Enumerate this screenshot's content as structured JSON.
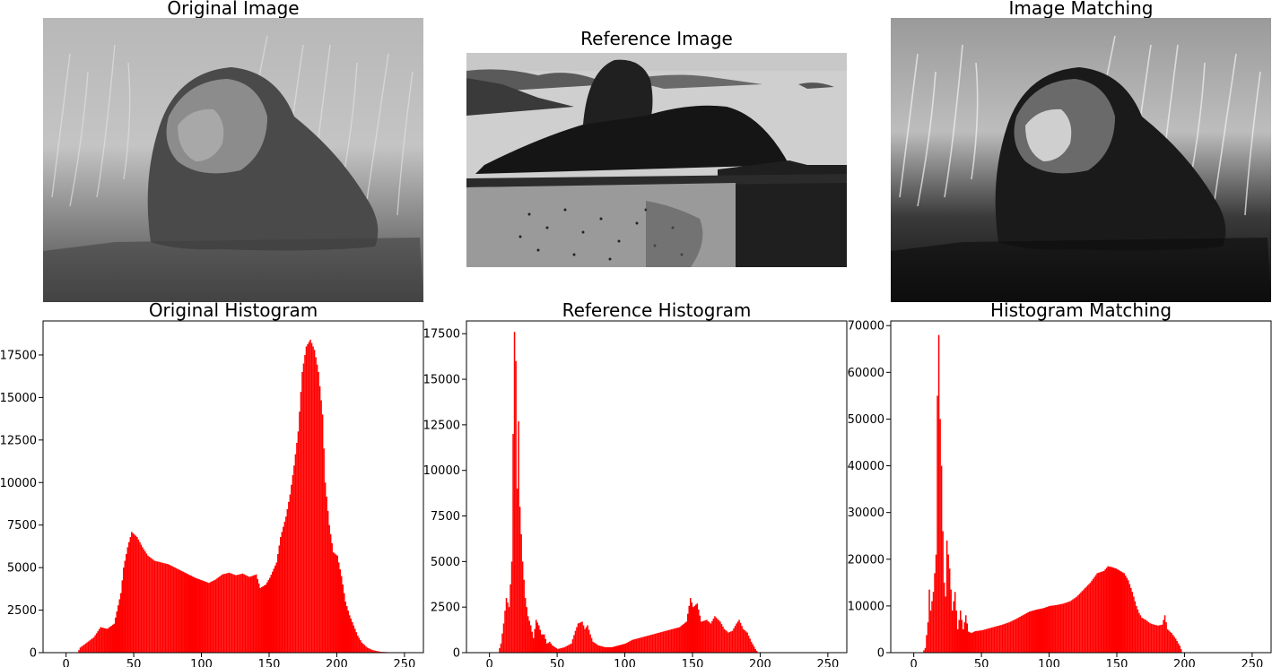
{
  "images": [
    {
      "title": "Original Image"
    },
    {
      "title": "Reference Image"
    },
    {
      "title": "Image Matching"
    }
  ],
  "colors": {
    "bar": "#ff0000",
    "axis": "#000000",
    "background": "#ffffff"
  },
  "chart_data": [
    {
      "type": "bar",
      "title": "Original Histogram",
      "xlabel": "",
      "ylabel": "",
      "xlim": [
        -17,
        264
      ],
      "ylim": [
        0,
        19500
      ],
      "xticks": [
        0,
        50,
        100,
        150,
        200,
        250
      ],
      "yticks": [
        0,
        2500,
        5000,
        7500,
        10000,
        12500,
        15000,
        17500
      ],
      "grid": false,
      "series": [
        {
          "points": [
            [
              8,
              0
            ],
            [
              10,
              300
            ],
            [
              15,
              600
            ],
            [
              20,
              900
            ],
            [
              25,
              1500
            ],
            [
              30,
              1400
            ],
            [
              35,
              1700
            ],
            [
              40,
              3500
            ],
            [
              42,
              5000
            ],
            [
              45,
              6200
            ],
            [
              48,
              7100
            ],
            [
              52,
              6800
            ],
            [
              56,
              6200
            ],
            [
              60,
              5700
            ],
            [
              65,
              5400
            ],
            [
              70,
              5300
            ],
            [
              75,
              5200
            ],
            [
              80,
              5000
            ],
            [
              85,
              4800
            ],
            [
              90,
              4600
            ],
            [
              95,
              4400
            ],
            [
              100,
              4250
            ],
            [
              105,
              4100
            ],
            [
              110,
              4300
            ],
            [
              115,
              4600
            ],
            [
              120,
              4700
            ],
            [
              125,
              4550
            ],
            [
              130,
              4650
            ],
            [
              135,
              4450
            ],
            [
              140,
              4600
            ],
            [
              143,
              3800
            ],
            [
              147,
              4000
            ],
            [
              150,
              4400
            ],
            [
              155,
              5300
            ],
            [
              158,
              6800
            ],
            [
              162,
              8000
            ],
            [
              165,
              9300
            ],
            [
              168,
              11000
            ],
            [
              171,
              13000
            ],
            [
              174,
              16500
            ],
            [
              177,
              18000
            ],
            [
              180,
              18400
            ],
            [
              183,
              17800
            ],
            [
              186,
              16500
            ],
            [
              189,
              14000
            ],
            [
              191,
              10000
            ],
            [
              194,
              7500
            ],
            [
              197,
              5900
            ],
            [
              200,
              5700
            ],
            [
              203,
              4500
            ],
            [
              206,
              3000
            ],
            [
              209,
              2200
            ],
            [
              212,
              1600
            ],
            [
              215,
              1000
            ],
            [
              218,
              600
            ],
            [
              222,
              300
            ],
            [
              226,
              150
            ],
            [
              232,
              50
            ],
            [
              245,
              0
            ]
          ]
        }
      ]
    },
    {
      "type": "bar",
      "title": "Reference Histogram",
      "xlabel": "",
      "ylabel": "",
      "xlim": [
        -17,
        264
      ],
      "ylim": [
        0,
        18200
      ],
      "xticks": [
        0,
        50,
        100,
        150,
        200,
        250
      ],
      "yticks": [
        0,
        2500,
        5000,
        7500,
        10000,
        12500,
        15000,
        17500
      ],
      "grid": false,
      "series": [
        {
          "points": [
            [
              6,
              0
            ],
            [
              8,
              500
            ],
            [
              10,
              1600
            ],
            [
              12,
              3000
            ],
            [
              14,
              2500
            ],
            [
              16,
              5000
            ],
            [
              17,
              12000
            ],
            [
              18,
              17600
            ],
            [
              19,
              16000
            ],
            [
              20,
              9000
            ],
            [
              21,
              12700
            ],
            [
              22,
              8000
            ],
            [
              24,
              5000
            ],
            [
              26,
              3000
            ],
            [
              28,
              2000
            ],
            [
              30,
              1500
            ],
            [
              32,
              800
            ],
            [
              34,
              1800
            ],
            [
              36,
              1500
            ],
            [
              38,
              1000
            ],
            [
              40,
              1000
            ],
            [
              42,
              500
            ],
            [
              44,
              600
            ],
            [
              46,
              400
            ],
            [
              48,
              300
            ],
            [
              50,
              200
            ],
            [
              55,
              300
            ],
            [
              60,
              500
            ],
            [
              63,
              1200
            ],
            [
              65,
              1600
            ],
            [
              68,
              1700
            ],
            [
              70,
              1300
            ],
            [
              72,
              1500
            ],
            [
              74,
              1000
            ],
            [
              76,
              600
            ],
            [
              80,
              400
            ],
            [
              85,
              300
            ],
            [
              90,
              300
            ],
            [
              95,
              400
            ],
            [
              100,
              500
            ],
            [
              105,
              700
            ],
            [
              110,
              800
            ],
            [
              115,
              900
            ],
            [
              120,
              1000
            ],
            [
              125,
              1100
            ],
            [
              130,
              1200
            ],
            [
              135,
              1300
            ],
            [
              140,
              1400
            ],
            [
              145,
              1700
            ],
            [
              148,
              3000
            ],
            [
              150,
              2500
            ],
            [
              153,
              2700
            ],
            [
              156,
              1700
            ],
            [
              160,
              1800
            ],
            [
              163,
              1600
            ],
            [
              166,
              2000
            ],
            [
              170,
              1700
            ],
            [
              173,
              1300
            ],
            [
              176,
              1100
            ],
            [
              179,
              1200
            ],
            [
              182,
              1600
            ],
            [
              184,
              1800
            ],
            [
              187,
              1300
            ],
            [
              190,
              1100
            ],
            [
              193,
              600
            ],
            [
              196,
              200
            ],
            [
              198,
              0
            ]
          ]
        }
      ]
    },
    {
      "type": "bar",
      "title": "Histogram Matching",
      "xlabel": "",
      "ylabel": "",
      "xlim": [
        -17,
        264
      ],
      "ylim": [
        0,
        71000
      ],
      "xticks": [
        0,
        50,
        100,
        150,
        200,
        250
      ],
      "yticks": [
        0,
        10000,
        20000,
        30000,
        40000,
        50000,
        60000,
        70000
      ],
      "grid": false,
      "series": [
        {
          "points": [
            [
              6,
              0
            ],
            [
              8,
              1000
            ],
            [
              10,
              6500
            ],
            [
              11,
              13500
            ],
            [
              12,
              9000
            ],
            [
              14,
              13000
            ],
            [
              16,
              21000
            ],
            [
              17,
              55000
            ],
            [
              18,
              68000
            ],
            [
              19,
              50000
            ],
            [
              20,
              40000
            ],
            [
              21,
              26000
            ],
            [
              22,
              15000
            ],
            [
              23,
              12000
            ],
            [
              24,
              24000
            ],
            [
              26,
              18000
            ],
            [
              28,
              9000
            ],
            [
              30,
              13000
            ],
            [
              32,
              5000
            ],
            [
              34,
              9000
            ],
            [
              36,
              5000
            ],
            [
              38,
              8000
            ],
            [
              40,
              4500
            ],
            [
              42,
              4200
            ],
            [
              45,
              4600
            ],
            [
              50,
              4800
            ],
            [
              55,
              5200
            ],
            [
              60,
              5600
            ],
            [
              65,
              6000
            ],
            [
              70,
              6500
            ],
            [
              75,
              7200
            ],
            [
              80,
              8000
            ],
            [
              85,
              8800
            ],
            [
              90,
              9200
            ],
            [
              95,
              9500
            ],
            [
              100,
              10000
            ],
            [
              105,
              10200
            ],
            [
              110,
              10500
            ],
            [
              115,
              11000
            ],
            [
              120,
              12000
            ],
            [
              125,
              13500
            ],
            [
              130,
              15000
            ],
            [
              135,
              17000
            ],
            [
              140,
              17500
            ],
            [
              143,
              18500
            ],
            [
              146,
              18300
            ],
            [
              149,
              18000
            ],
            [
              152,
              17500
            ],
            [
              155,
              17000
            ],
            [
              158,
              15500
            ],
            [
              161,
              13000
            ],
            [
              164,
              10000
            ],
            [
              166,
              8500
            ],
            [
              168,
              7500
            ],
            [
              171,
              7000
            ],
            [
              174,
              6300
            ],
            [
              177,
              6000
            ],
            [
              180,
              5800
            ],
            [
              183,
              6000
            ],
            [
              185,
              8000
            ],
            [
              187,
              5000
            ],
            [
              190,
              4200
            ],
            [
              193,
              3000
            ],
            [
              196,
              1500
            ],
            [
              198,
              0
            ]
          ]
        }
      ]
    }
  ]
}
